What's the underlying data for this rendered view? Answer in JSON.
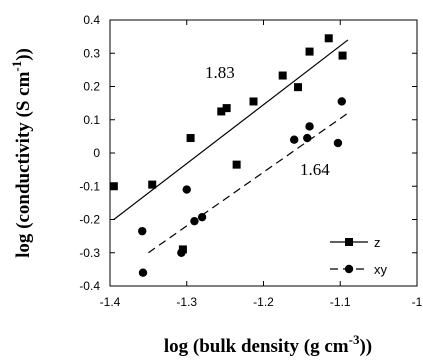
{
  "chart_data": {
    "type": "scatter",
    "xlabel": "log (bulk density (g cm",
    "xlabel_sup": "-3",
    "xlabel_end": "))",
    "ylabel": "log (conductivity (S cm",
    "ylabel_sup": "-1",
    "ylabel_end": "))",
    "xlim": [
      -1.4,
      -1.0
    ],
    "ylim": [
      -0.4,
      0.4
    ],
    "x_ticks": [
      -1.4,
      -1.3,
      -1.2,
      -1.1,
      -1.0
    ],
    "x_tick_labels": [
      "-1.4",
      "-1.3",
      "-1.2",
      "-1.1",
      "-1"
    ],
    "y_ticks": [
      -0.4,
      -0.3,
      -0.2,
      -0.1,
      0.0,
      0.1,
      0.2,
      0.3,
      0.4
    ],
    "y_tick_labels": [
      "-0.4",
      "-0.3",
      "-0.2",
      "-0.1",
      "0",
      "0.1",
      "0.2",
      "0.3",
      "0.4"
    ],
    "grid": false,
    "legend_position": "bottom-right",
    "series": [
      {
        "name": "z",
        "marker": "square",
        "line_style": "solid",
        "points": [
          [
            -1.395,
            -0.1
          ],
          [
            -1.345,
            -0.095
          ],
          [
            -1.305,
            -0.29
          ],
          [
            -1.295,
            0.045
          ],
          [
            -1.255,
            0.125
          ],
          [
            -1.248,
            0.135
          ],
          [
            -1.235,
            -0.035
          ],
          [
            -1.213,
            0.155
          ],
          [
            -1.175,
            0.233
          ],
          [
            -1.155,
            0.198
          ],
          [
            -1.14,
            0.305
          ],
          [
            -1.115,
            0.345
          ],
          [
            -1.097,
            0.293
          ]
        ],
        "fit_line": [
          [
            -1.395,
            -0.2
          ],
          [
            -1.09,
            0.34
          ]
        ],
        "fit_label": "1.83"
      },
      {
        "name": "xy",
        "marker": "circle",
        "line_style": "dashed",
        "points": [
          [
            -1.358,
            -0.235
          ],
          [
            -1.357,
            -0.36
          ],
          [
            -1.307,
            -0.3
          ],
          [
            -1.3,
            -0.11
          ],
          [
            -1.29,
            -0.205
          ],
          [
            -1.28,
            -0.193
          ],
          [
            -1.16,
            0.04
          ],
          [
            -1.143,
            0.045
          ],
          [
            -1.14,
            0.08
          ],
          [
            -1.103,
            0.03
          ],
          [
            -1.098,
            0.155
          ]
        ],
        "fit_line": [
          [
            -1.35,
            -0.3
          ],
          [
            -1.09,
            0.12
          ]
        ],
        "fit_label": "1.64"
      }
    ]
  }
}
